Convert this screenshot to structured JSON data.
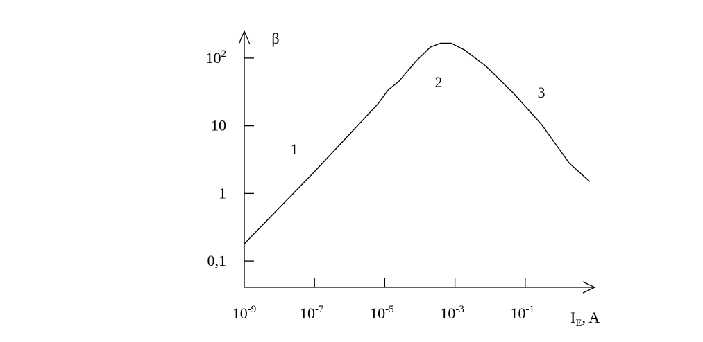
{
  "chart_data": {
    "type": "line",
    "log_x": true,
    "log_y": true,
    "color": "#000000",
    "y_label": "β",
    "x_label": {
      "text": "I",
      "subscript": "E",
      "suffix": ", A"
    },
    "x": [
      1e-09,
      1e-07,
      6.4e-06,
      1.26e-05,
      2.5e-05,
      7.9e-05,
      0.0002,
      0.00039,
      0.00078,
      0.0019,
      0.0076,
      0.047,
      0.29,
      1.8,
      6.9
    ],
    "values": [
      0.18,
      2.1,
      21,
      34,
      45,
      91,
      145,
      166,
      166,
      131,
      76,
      30,
      10.5,
      2.8,
      1.5
    ],
    "xlim": [
      1e-09,
      10
    ],
    "ylim": [
      0.04,
      250
    ],
    "xticks": [
      {
        "value": 1e-09,
        "label": "10",
        "exponent": "-9"
      },
      {
        "value": 1e-07,
        "label": "10",
        "exponent": "-7"
      },
      {
        "value": 1e-05,
        "label": "10",
        "exponent": "-5"
      },
      {
        "value": 0.001,
        "label": "10",
        "exponent": "-3"
      },
      {
        "value": 0.1,
        "label": "10",
        "exponent": "-1"
      }
    ],
    "yticks": [
      {
        "value": 0.1,
        "label": "0,1"
      },
      1,
      10,
      {
        "value": 100,
        "label": "10",
        "exponent": "2"
      }
    ],
    "annotations": [
      "1",
      "2",
      "3"
    ]
  }
}
